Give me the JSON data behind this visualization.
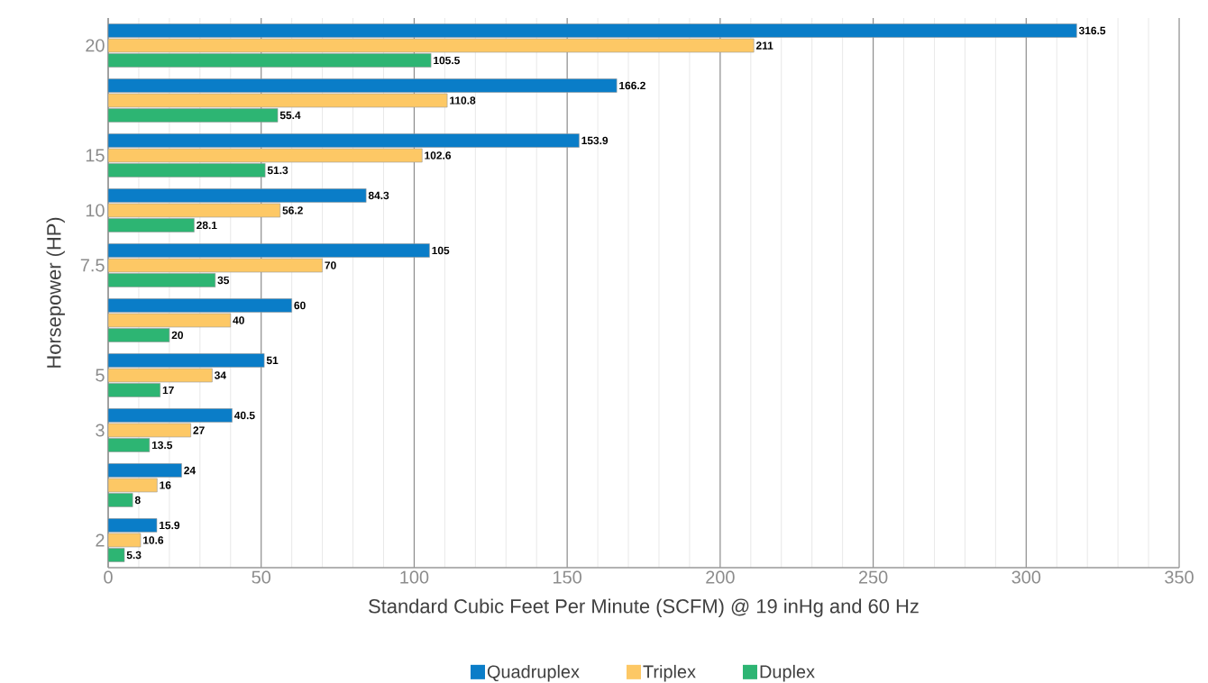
{
  "chart_data": {
    "type": "bar",
    "orientation": "horizontal",
    "xlabel": "Standard Cubic Feet Per Minute (SCFM) @ 19 inHg and 60 Hz",
    "ylabel": "Horsepower (HP)",
    "categories": [
      "20",
      null,
      "15",
      "10",
      "7.5",
      null,
      "5",
      "3",
      null,
      "2"
    ],
    "series": [
      {
        "name": "Quadruplex",
        "color": "#0a7dc8",
        "values": [
          316.5,
          166.2,
          153.9,
          84.3,
          105,
          60,
          51,
          40.5,
          24,
          15.9
        ]
      },
      {
        "name": "Triplex",
        "color": "#fdc865",
        "values": [
          211,
          110.8,
          102.6,
          56.2,
          70,
          40,
          34,
          27,
          16,
          10.6
        ]
      },
      {
        "name": "Duplex",
        "color": "#2db573",
        "values": [
          105.5,
          55.4,
          51.3,
          28.1,
          35,
          20,
          17,
          13.5,
          8,
          5.3
        ]
      }
    ],
    "xlim": [
      0,
      350
    ],
    "xticks": [
      0,
      50,
      100,
      150,
      200,
      250,
      300,
      350
    ],
    "grid": "x",
    "legend": "bottom",
    "data_labels": true
  }
}
